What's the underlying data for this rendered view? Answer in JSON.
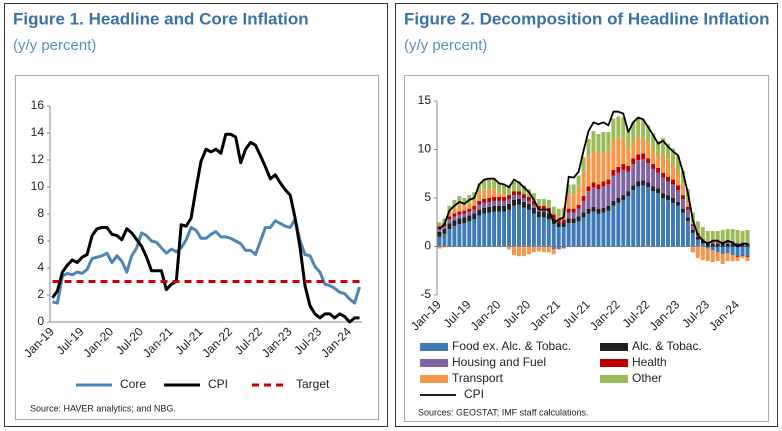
{
  "chart_data": [
    {
      "type": "line",
      "title": "Figure 1. Headline and Core Inflation",
      "subtitle": "(y/y percent)",
      "source": "Source: HAVER analytics; and NBG.",
      "categories": [
        "Jan-19",
        null,
        null,
        null,
        null,
        null,
        "Jul-19",
        null,
        null,
        null,
        null,
        null,
        "Jan-20",
        null,
        null,
        null,
        null,
        null,
        "Jul-20",
        null,
        null,
        null,
        null,
        null,
        "Jan-21",
        null,
        null,
        null,
        null,
        null,
        "Jul-21",
        null,
        null,
        null,
        null,
        null,
        "Jan-22",
        null,
        null,
        null,
        null,
        null,
        "Jul-22",
        null,
        null,
        null,
        null,
        null,
        "Jan-23",
        null,
        null,
        null,
        null,
        null,
        "Jul-23",
        null,
        null,
        null,
        null,
        null,
        "Jan-24",
        null,
        null
      ],
      "ylim": [
        0,
        16
      ],
      "yticks": [
        0,
        2,
        4,
        6,
        8,
        10,
        12,
        14,
        16
      ],
      "series": [
        {
          "name": "Core",
          "color": "#4a86b8",
          "values": [
            1.5,
            1.4,
            3.4,
            3.6,
            3.5,
            3.7,
            3.6,
            3.9,
            4.7,
            4.8,
            4.9,
            5.1,
            4.4,
            4.9,
            4.5,
            3.7,
            4.9,
            5.5,
            6.6,
            6.4,
            6.0,
            5.9,
            5.5,
            5.1,
            5.4,
            5.2,
            5.5,
            6.1,
            7.0,
            6.8,
            6.2,
            6.2,
            6.5,
            6.7,
            6.3,
            6.3,
            6.2,
            6.0,
            5.8,
            5.3,
            5.3,
            5.0,
            6.0,
            7.0,
            7.0,
            7.5,
            7.3,
            7.1,
            7.0,
            7.6,
            6.0,
            5.0,
            4.9,
            4.1,
            3.7,
            2.8,
            2.7,
            2.5,
            2.2,
            2.1,
            1.7,
            1.4,
            2.6
          ]
        },
        {
          "name": "CPI",
          "color": "#000000",
          "values": [
            1.8,
            2.3,
            3.7,
            4.2,
            4.6,
            4.4,
            4.8,
            5.0,
            6.4,
            6.9,
            7.0,
            7.0,
            6.5,
            6.4,
            6.1,
            6.9,
            6.6,
            6.1,
            5.6,
            4.8,
            3.8,
            3.8,
            3.8,
            2.4,
            2.8,
            3.0,
            7.2,
            7.1,
            7.7,
            9.9,
            11.9,
            12.8,
            12.6,
            12.8,
            12.5,
            13.9,
            13.9,
            13.7,
            11.8,
            12.8,
            13.3,
            13.1,
            12.3,
            11.5,
            10.6,
            10.9,
            10.3,
            9.8,
            9.4,
            7.7,
            5.5,
            2.7,
            1.2,
            0.6,
            0.3,
            0.6,
            0.6,
            0.3,
            0.6,
            0.4,
            0.0,
            0.3,
            0.3
          ]
        },
        {
          "name": "Target",
          "color": "#cc0000",
          "dash": true,
          "values": [
            3,
            3,
            3,
            3,
            3,
            3,
            3,
            3,
            3,
            3,
            3,
            3,
            3,
            3,
            3,
            3,
            3,
            3,
            3,
            3,
            3,
            3,
            3,
            3,
            3,
            3,
            3,
            3,
            3,
            3,
            3,
            3,
            3,
            3,
            3,
            3,
            3,
            3,
            3,
            3,
            3,
            3,
            3,
            3,
            3,
            3,
            3,
            3,
            3,
            3,
            3,
            3,
            3,
            3,
            3,
            3,
            3,
            3,
            3,
            3,
            3,
            3,
            3
          ]
        }
      ]
    },
    {
      "type": "bar",
      "stacked": true,
      "title": "Figure 2. Decomposition of Headline Inflation",
      "subtitle": "(y/y percent)",
      "source": "Sources: GEOSTAT; IMF staff calculations.",
      "categories": [
        "Jan-19",
        null,
        null,
        null,
        null,
        null,
        "Jul-19",
        null,
        null,
        null,
        null,
        null,
        "Jan-20",
        null,
        null,
        null,
        null,
        null,
        "Jul-20",
        null,
        null,
        null,
        null,
        null,
        "Jan-21",
        null,
        null,
        null,
        null,
        null,
        "Jul-21",
        null,
        null,
        null,
        null,
        null,
        "Jan-22",
        null,
        null,
        null,
        null,
        null,
        "Jul-22",
        null,
        null,
        null,
        null,
        null,
        "Jan-23",
        null,
        null,
        null,
        null,
        null,
        "Jul-23",
        null,
        null,
        null,
        null,
        null,
        "Jan-24",
        null,
        null
      ],
      "ylim": [
        -5,
        15
      ],
      "yticks": [
        -5,
        0,
        5,
        10,
        15
      ],
      "series": [
        {
          "name": "Food ex. Alc. & Tobac.",
          "color": "#3e7bb6",
          "values": [
            1.0,
            1.3,
            1.8,
            2.1,
            2.3,
            2.4,
            2.6,
            2.8,
            3.2,
            3.4,
            3.5,
            3.6,
            3.6,
            3.6,
            3.8,
            4.2,
            4.3,
            4.0,
            3.8,
            3.4,
            3.0,
            3.0,
            2.8,
            2.3,
            2.0,
            2.0,
            2.4,
            2.4,
            2.6,
            3.0,
            3.4,
            3.6,
            3.4,
            3.5,
            3.7,
            4.2,
            4.5,
            4.8,
            5.2,
            5.8,
            6.2,
            6.3,
            6.1,
            5.7,
            5.5,
            5.0,
            4.8,
            4.5,
            4.2,
            3.5,
            2.6,
            1.4,
            0.7,
            0.3,
            -0.2,
            -0.4,
            -0.6,
            -0.8,
            -0.7,
            -0.9,
            -1.0,
            -0.9,
            -1.0
          ]
        },
        {
          "name": "Alc. & Tobac.",
          "color": "#222222",
          "values": [
            0.5,
            0.5,
            0.6,
            0.6,
            0.6,
            0.6,
            0.6,
            0.6,
            0.6,
            0.6,
            0.6,
            0.6,
            0.6,
            0.6,
            0.6,
            0.6,
            0.6,
            0.6,
            0.6,
            0.6,
            0.6,
            0.6,
            0.6,
            0.6,
            0.5,
            0.5,
            0.5,
            0.5,
            0.5,
            0.5,
            0.5,
            0.5,
            0.5,
            0.5,
            0.5,
            0.5,
            0.5,
            0.5,
            0.5,
            0.5,
            0.5,
            0.5,
            0.5,
            0.5,
            0.5,
            0.5,
            0.5,
            0.5,
            0.4,
            0.4,
            0.4,
            0.3,
            0.3,
            0.3,
            0.3,
            0.3,
            0.3,
            0.3,
            0.3,
            0.3,
            0.3,
            0.3,
            0.3
          ]
        },
        {
          "name": "Housing and Fuel",
          "color": "#8064a2",
          "values": [
            0.3,
            0.3,
            0.4,
            0.4,
            0.4,
            0.4,
            0.4,
            0.4,
            0.5,
            0.5,
            0.5,
            0.5,
            0.5,
            0.5,
            0.5,
            0.5,
            0.4,
            0.4,
            0.3,
            0.3,
            0.2,
            0.2,
            0.2,
            -0.3,
            -0.3,
            -0.2,
            0.6,
            0.6,
            0.8,
            1.2,
            1.8,
            2.0,
            2.0,
            2.2,
            2.2,
            2.6,
            2.6,
            2.6,
            2.0,
            2.2,
            2.2,
            2.2,
            2.0,
            1.8,
            1.6,
            1.6,
            1.4,
            1.4,
            1.2,
            1.0,
            0.8,
            0.4,
            0.2,
            0.1,
            0.1,
            0.1,
            0.1,
            0.1,
            0.1,
            0.1,
            0.1,
            0.1,
            0.1
          ]
        },
        {
          "name": "Health",
          "color": "#c00000",
          "values": [
            0.3,
            0.3,
            0.3,
            0.3,
            0.3,
            0.3,
            0.3,
            0.4,
            0.4,
            0.4,
            0.4,
            0.4,
            0.4,
            0.4,
            0.4,
            0.4,
            0.4,
            0.4,
            0.4,
            0.4,
            0.4,
            0.4,
            0.4,
            0.4,
            0.3,
            0.3,
            0.4,
            0.4,
            0.4,
            0.5,
            0.5,
            0.5,
            0.5,
            0.5,
            0.5,
            0.6,
            0.6,
            0.6,
            0.6,
            0.6,
            0.6,
            0.6,
            0.5,
            0.5,
            0.5,
            0.5,
            0.5,
            0.5,
            0.5,
            0.4,
            0.3,
            0.2,
            0.2,
            0.1,
            0.1,
            0.1,
            0.1,
            0.1,
            0.1,
            0.1,
            -0.1,
            -0.1,
            -0.1
          ]
        },
        {
          "name": "Transport",
          "color": "#f79646",
          "values": [
            -0.2,
            -0.1,
            0.4,
            0.6,
            0.7,
            0.5,
            0.6,
            0.6,
            0.9,
            1.0,
            0.9,
            0.9,
            0.5,
            0.3,
            -0.3,
            -0.9,
            -1.0,
            -1.0,
            -0.8,
            -0.6,
            -0.5,
            -0.6,
            -0.6,
            -0.5,
            0.3,
            0.4,
            1.5,
            1.5,
            1.8,
            2.5,
            3.0,
            3.3,
            3.2,
            3.0,
            2.9,
            3.2,
            3.0,
            2.6,
            1.8,
            1.7,
            1.8,
            1.6,
            1.6,
            1.5,
            1.2,
            2.0,
            1.8,
            1.6,
            1.4,
            1.0,
            0.4,
            -0.6,
            -1.2,
            -1.4,
            -1.3,
            -1.2,
            -0.9,
            -1.0,
            -0.8,
            -0.6,
            -0.4,
            -0.2,
            -0.4
          ]
        },
        {
          "name": "Other",
          "color": "#9bbb59",
          "values": [
            0.4,
            0.5,
            0.7,
            0.8,
            0.9,
            0.8,
            0.8,
            0.8,
            0.9,
            1.0,
            1.1,
            1.0,
            1.0,
            1.0,
            1.0,
            1.0,
            1.0,
            0.9,
            0.8,
            0.8,
            0.7,
            0.7,
            0.8,
            0.8,
            0.8,
            0.8,
            1.0,
            1.0,
            1.2,
            1.5,
            1.9,
            2.0,
            2.0,
            2.1,
            2.0,
            2.1,
            2.2,
            2.2,
            2.0,
            2.0,
            2.0,
            1.9,
            1.8,
            1.7,
            1.6,
            1.6,
            1.6,
            1.6,
            1.6,
            1.5,
            1.4,
            1.2,
            1.2,
            1.2,
            1.1,
            1.1,
            1.1,
            1.2,
            1.3,
            1.3,
            1.3,
            1.2,
            1.3
          ]
        },
        {
          "name": "CPI",
          "color": "#000000",
          "type": "line",
          "values": [
            1.8,
            2.3,
            3.7,
            4.2,
            4.6,
            4.4,
            4.8,
            5.0,
            6.4,
            6.9,
            7.0,
            7.0,
            6.5,
            6.4,
            6.1,
            6.9,
            6.6,
            6.1,
            5.6,
            4.8,
            3.8,
            3.8,
            3.8,
            2.4,
            2.8,
            3.0,
            7.2,
            7.1,
            7.7,
            9.9,
            11.9,
            12.8,
            12.6,
            12.8,
            12.5,
            13.9,
            13.9,
            13.7,
            11.8,
            12.8,
            13.3,
            13.1,
            12.3,
            11.5,
            10.6,
            10.9,
            10.3,
            9.8,
            9.4,
            7.7,
            5.5,
            2.7,
            1.2,
            0.6,
            0.3,
            0.6,
            0.6,
            0.3,
            0.6,
            0.4,
            0.0,
            0.3,
            0.3
          ]
        }
      ]
    }
  ]
}
